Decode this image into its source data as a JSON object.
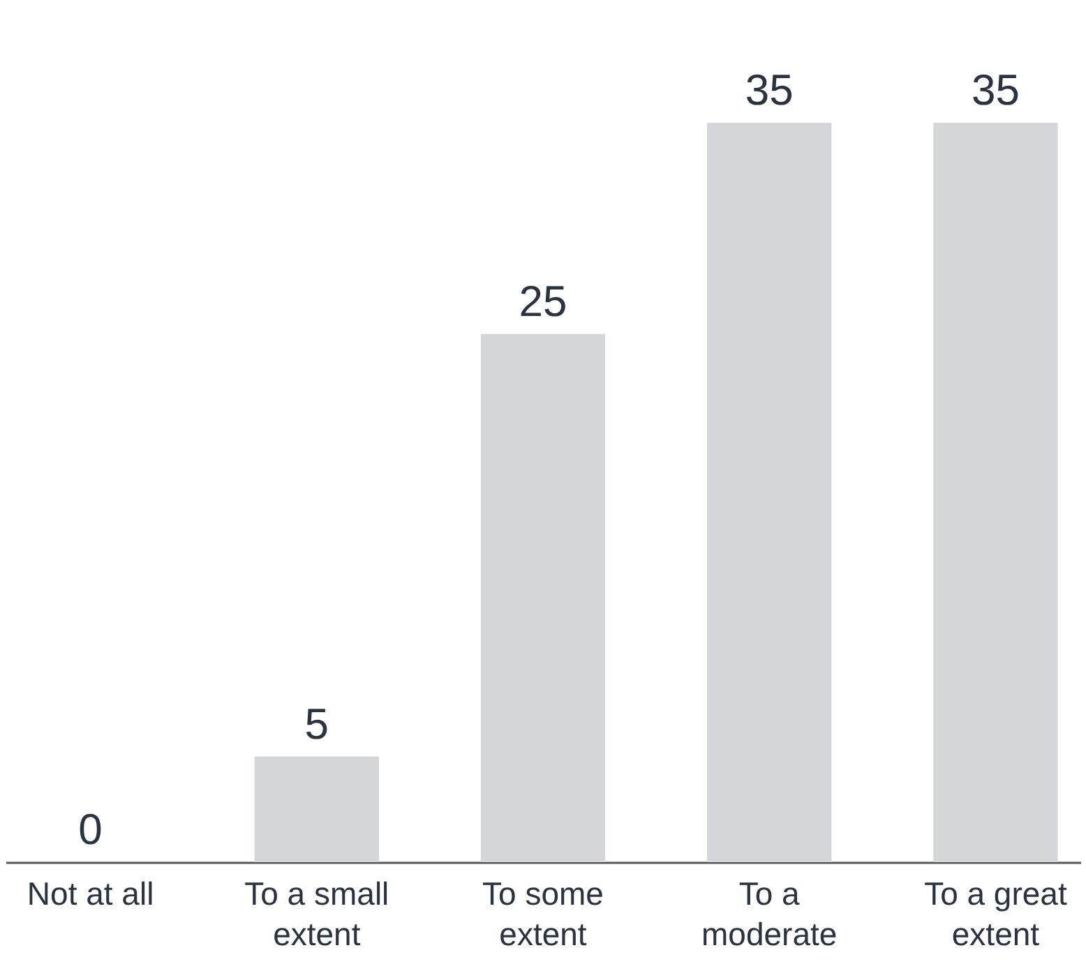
{
  "chart_data": {
    "type": "bar",
    "categories": [
      "Not at all",
      "To a small extent",
      "To some extent",
      "To a moderate extent",
      "To a great extent"
    ],
    "values": [
      0,
      5,
      25,
      35,
      35
    ],
    "color": "#d4d6d9",
    "data_labels": true,
    "grid": false
  }
}
